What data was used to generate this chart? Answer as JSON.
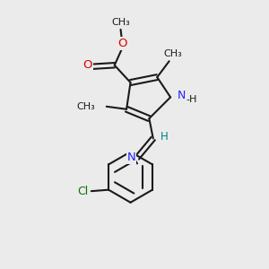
{
  "bg_color": "#ebebeb",
  "bond_color": "#1a1a1a",
  "N_color": "#2020ff",
  "O_color": "#dd0000",
  "Cl_color": "#007700",
  "H_color": "#008080",
  "line_width": 1.5,
  "figsize": [
    3.0,
    3.0
  ],
  "dpi": 100,
  "xlim": [
    0,
    10
  ],
  "ylim": [
    0,
    10
  ]
}
